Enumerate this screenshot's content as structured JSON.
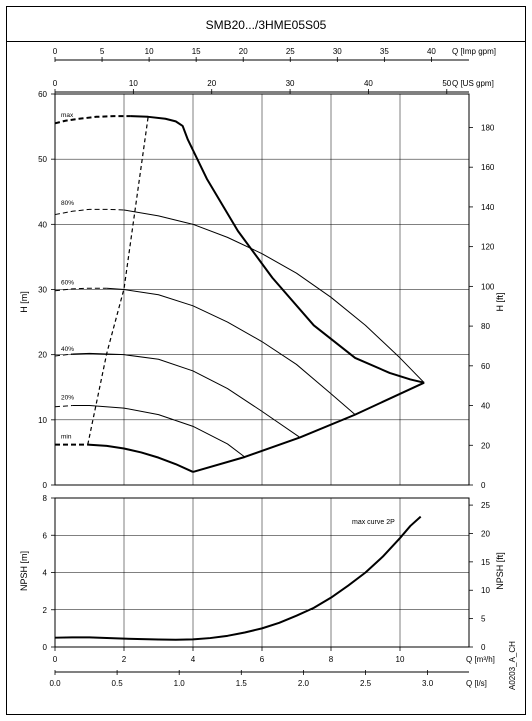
{
  "title": "SMB20.../3HME05S05",
  "side_code": "A0203_A_CH",
  "colors": {
    "curve": "#000000",
    "grid": "#000000",
    "frame": "#000000"
  },
  "top_axes": [
    {
      "label": "Q [Imp gpm]",
      "ticks": [
        0,
        5,
        10,
        15,
        20,
        25,
        30,
        35,
        40
      ],
      "per_m3h": 3.666
    },
    {
      "label": "Q [US gpm]",
      "ticks": [
        0,
        10,
        20,
        30,
        40,
        50
      ],
      "per_m3h": 4.403
    }
  ],
  "bottom_axes": [
    {
      "label": "Q [m³/h]",
      "ticks": [
        "0",
        "2",
        "4",
        "6",
        "8",
        "10"
      ],
      "values": [
        0,
        2,
        4,
        6,
        8,
        10
      ]
    },
    {
      "label": "Q [l/s]",
      "ticks": [
        "0.0",
        "0.5",
        "1.0",
        "1.5",
        "2.0",
        "2.5",
        "3.0"
      ],
      "values": [
        0,
        0.5,
        1,
        1.5,
        2,
        2.5,
        3
      ]
    }
  ],
  "chart_data": [
    {
      "type": "line",
      "name": "head",
      "xlim": [
        0,
        12
      ],
      "ylim": [
        0,
        60
      ],
      "y2lim": [
        0,
        196.85
      ],
      "ylabel": "H [m]",
      "y2label": "H [ft]",
      "yticks": [
        0,
        10,
        20,
        30,
        40,
        50,
        60
      ],
      "y2ticks": [
        0,
        20,
        40,
        60,
        80,
        100,
        120,
        140,
        160,
        180
      ],
      "grid": true,
      "series": [
        {
          "name": "max",
          "x": [
            0,
            0.3,
            0.7,
            1.2,
            1.7,
            2.2,
            2.7,
            3.2,
            3.5,
            3.7,
            3.85,
            4.4,
            5.3,
            6.3,
            7.5,
            8.7,
            9.7,
            10.3,
            10.7
          ],
          "y": [
            55.5,
            55.9,
            56.2,
            56.5,
            56.6,
            56.6,
            56.5,
            56.2,
            55.8,
            55.1,
            53.0,
            47.0,
            39.0,
            31.8,
            24.5,
            19.5,
            17.2,
            16.2,
            15.7
          ]
        },
        {
          "name": "80%",
          "x": [
            0,
            0.5,
            1.0,
            1.5,
            2.0,
            3.0,
            4.0,
            5.0,
            6.0,
            7.0,
            8.0,
            9.0,
            10.0,
            10.7
          ],
          "y": [
            41.5,
            42.0,
            42.3,
            42.3,
            42.2,
            41.3,
            40.0,
            38.0,
            35.5,
            32.5,
            28.8,
            24.5,
            19.5,
            15.7
          ]
        },
        {
          "name": "60%",
          "x": [
            0,
            0.5,
            1.0,
            1.5,
            2.0,
            3.0,
            4.0,
            5.0,
            6.0,
            7.0,
            8.0,
            8.7
          ],
          "y": [
            29.8,
            30.1,
            30.2,
            30.2,
            30.0,
            29.2,
            27.5,
            25.0,
            22.0,
            18.5,
            14.0,
            10.8
          ]
        },
        {
          "name": "40%",
          "x": [
            0,
            0.5,
            1.0,
            2.0,
            3.0,
            4.0,
            5.0,
            6.0,
            7.1
          ],
          "y": [
            19.8,
            20.1,
            20.2,
            20.0,
            19.3,
            17.5,
            14.8,
            11.3,
            7.3
          ]
        },
        {
          "name": "20%",
          "x": [
            0,
            0.5,
            1.0,
            2.0,
            3.0,
            4.0,
            5.0,
            5.5
          ],
          "y": [
            12.0,
            12.2,
            12.2,
            11.8,
            10.8,
            9.0,
            6.3,
            4.3
          ]
        },
        {
          "name": "min",
          "x": [
            0,
            0.5,
            0.95,
            1.5,
            2.0,
            2.5,
            3.0,
            3.5,
            4.0
          ],
          "y": [
            6.2,
            6.2,
            6.2,
            6.0,
            5.6,
            5.0,
            4.2,
            3.2,
            2.0
          ]
        },
        {
          "name": "min-operating-limit",
          "x": [
            4.0,
            5.5,
            7.1,
            8.7,
            10.7
          ],
          "y": [
            2.0,
            4.3,
            7.3,
            10.8,
            15.7
          ]
        },
        {
          "name": "range-boundary",
          "x": [
            0.95,
            1.5,
            2.0,
            2.7
          ],
          "y": [
            6.2,
            20.2,
            30.1,
            56.5
          ]
        }
      ],
      "labels": [
        "max",
        "80%",
        "60%",
        "40%",
        "20%",
        "min"
      ]
    },
    {
      "type": "line",
      "name": "npsh",
      "xlim": [
        0,
        12
      ],
      "ylim": [
        0,
        8
      ],
      "y2lim": [
        0,
        26.25
      ],
      "ylabel": "NPSH [m]",
      "y2label": "NPSH [ft]",
      "yticks": [
        0,
        2,
        4,
        6,
        8
      ],
      "y2ticks": [
        0,
        5,
        10,
        15,
        20,
        25
      ],
      "grid": true,
      "annotation": "max curve 2P",
      "series": [
        {
          "name": "max curve 2P",
          "x": [
            0,
            0.5,
            1,
            2,
            3,
            3.5,
            4,
            4.5,
            5,
            5.5,
            6,
            6.5,
            7,
            7.5,
            8,
            8.5,
            9,
            9.5,
            10,
            10.3,
            10.6
          ],
          "y": [
            0.5,
            0.52,
            0.52,
            0.45,
            0.4,
            0.39,
            0.41,
            0.48,
            0.6,
            0.78,
            1.0,
            1.3,
            1.68,
            2.1,
            2.65,
            3.3,
            4.0,
            4.85,
            5.85,
            6.5,
            7.0
          ]
        }
      ]
    }
  ]
}
